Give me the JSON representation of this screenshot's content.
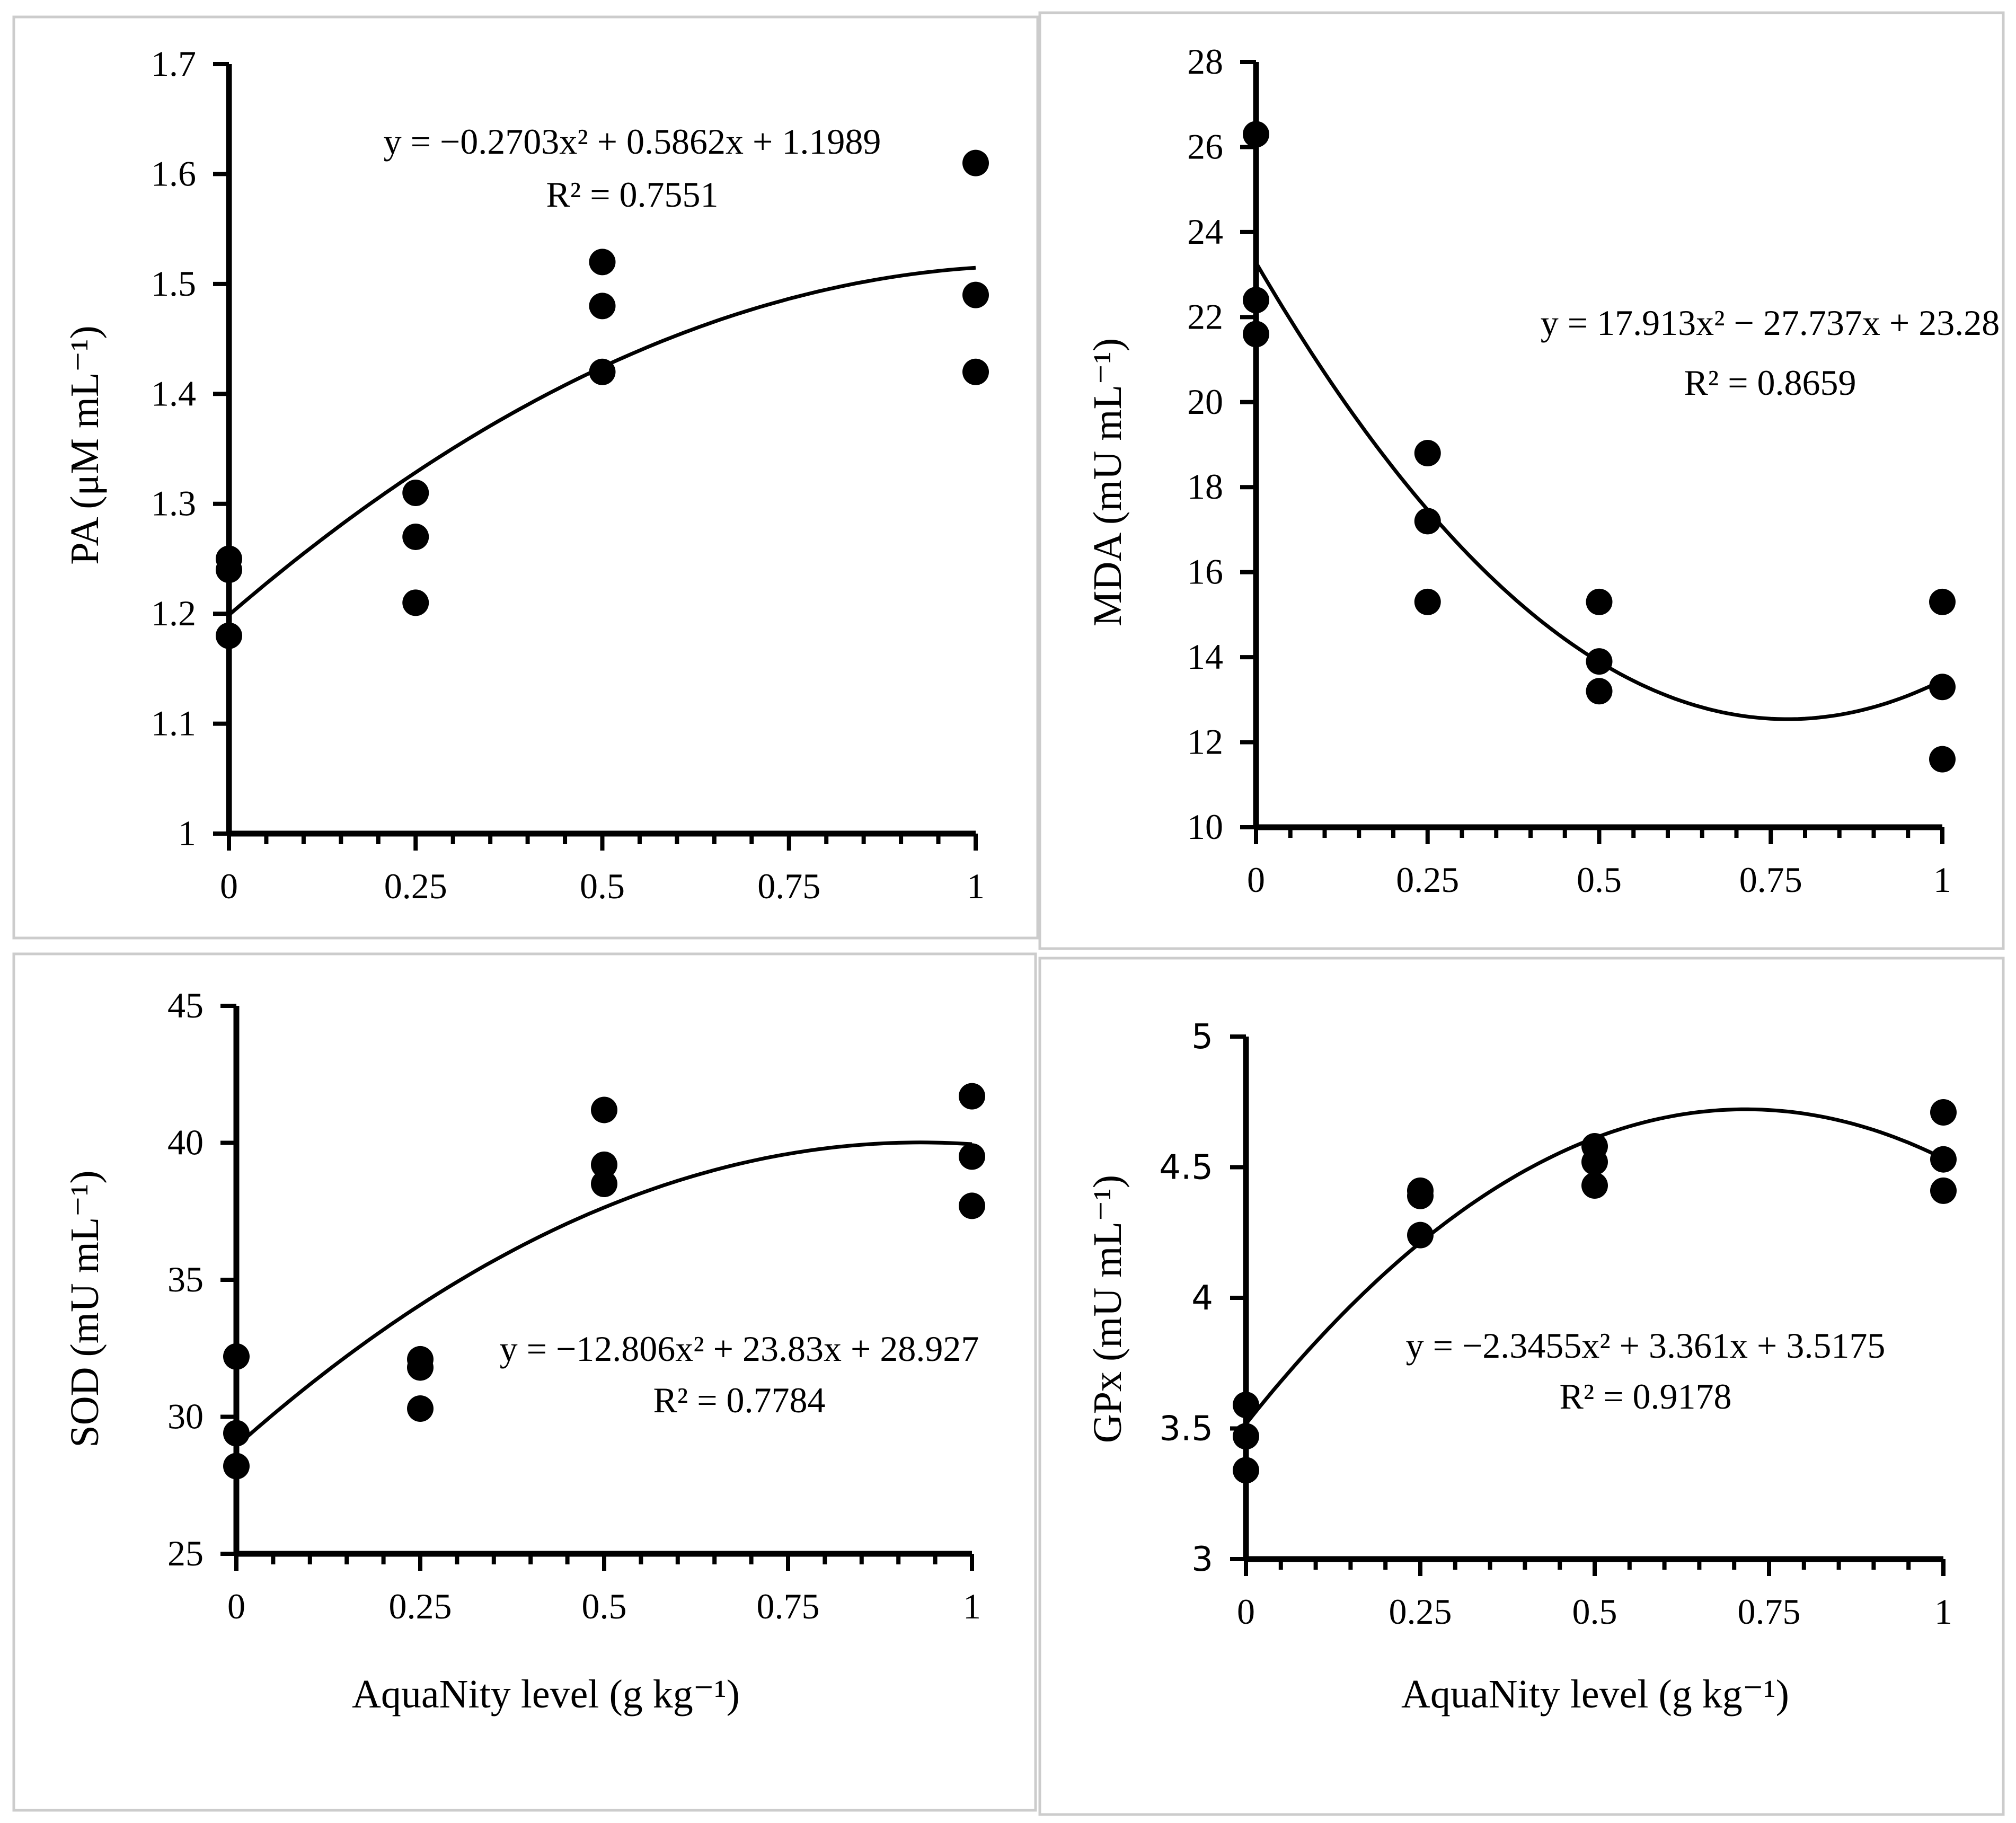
{
  "figure_xlabel": "AquaNity level (g kg⁻¹)",
  "colors": {
    "marker": "#000000",
    "curve": "#000000",
    "axis": "#000000",
    "panel_border": "#cccccc"
  },
  "chart_data": [
    {
      "id": "pa",
      "type": "scatter",
      "ylabel": "PA (μM mL⁻¹)",
      "xlim": [
        0,
        1
      ],
      "ylim": [
        1,
        1.7
      ],
      "xticks": [
        0,
        0.25,
        0.5,
        0.75,
        1
      ],
      "xtick_labels": [
        "0",
        "0.25",
        "0.5",
        "0.75",
        "1"
      ],
      "yticks": [
        1,
        1.1,
        1.2,
        1.3,
        1.4,
        1.5,
        1.6,
        1.7
      ],
      "ytick_labels": [
        "1",
        "1.1",
        "1.2",
        "1.3",
        "1.4",
        "1.5",
        "1.6",
        "1.7"
      ],
      "points": [
        {
          "x": 0,
          "y": 1.25
        },
        {
          "x": 0,
          "y": 1.24
        },
        {
          "x": 0,
          "y": 1.18
        },
        {
          "x": 0.25,
          "y": 1.31
        },
        {
          "x": 0.25,
          "y": 1.27
        },
        {
          "x": 0.25,
          "y": 1.21
        },
        {
          "x": 0.5,
          "y": 1.52
        },
        {
          "x": 0.5,
          "y": 1.48
        },
        {
          "x": 0.5,
          "y": 1.42
        },
        {
          "x": 1,
          "y": 1.61
        },
        {
          "x": 1,
          "y": 1.49
        },
        {
          "x": 1,
          "y": 1.42
        }
      ],
      "trendline": {
        "type": "polynomial",
        "coefficients": [
          -0.2703,
          0.5862,
          1.1989
        ]
      },
      "equation": "y = −0.2703x² + 0.5862x + 1.1989",
      "r2": "R² = 0.7551"
    },
    {
      "id": "mda",
      "type": "scatter",
      "ylabel": "MDA (mU mL⁻¹)",
      "xlim": [
        0,
        1
      ],
      "ylim": [
        10,
        28
      ],
      "xticks": [
        0,
        0.25,
        0.5,
        0.75,
        1
      ],
      "xtick_labels": [
        "0",
        "0.25",
        "0.5",
        "0.75",
        "1"
      ],
      "yticks": [
        10,
        12,
        14,
        16,
        18,
        20,
        22,
        24,
        26,
        28
      ],
      "ytick_labels": [
        "10",
        "12",
        "14",
        "16",
        "18",
        "20",
        "22",
        "24",
        "26",
        "28"
      ],
      "points": [
        {
          "x": 0,
          "y": 26.3
        },
        {
          "x": 0,
          "y": 22.4
        },
        {
          "x": 0,
          "y": 21.6
        },
        {
          "x": 0.25,
          "y": 18.8
        },
        {
          "x": 0.25,
          "y": 17.2
        },
        {
          "x": 0.25,
          "y": 15.3
        },
        {
          "x": 0.5,
          "y": 15.3
        },
        {
          "x": 0.5,
          "y": 13.9
        },
        {
          "x": 0.5,
          "y": 13.2
        },
        {
          "x": 1,
          "y": 15.3
        },
        {
          "x": 1,
          "y": 13.3
        },
        {
          "x": 1,
          "y": 11.6
        }
      ],
      "trendline": {
        "type": "polynomial",
        "coefficients": [
          17.913,
          -27.737,
          23.28
        ]
      },
      "equation": "y = 17.913x² − 27.737x + 23.28",
      "r2": "R² = 0.8659"
    },
    {
      "id": "sod",
      "type": "scatter",
      "ylabel": "SOD (mU mL⁻¹)",
      "xlim": [
        0,
        1
      ],
      "ylim": [
        25,
        45
      ],
      "xticks": [
        0,
        0.25,
        0.5,
        0.75,
        1
      ],
      "xtick_labels": [
        "0",
        "0.25",
        "0.5",
        "0.75",
        "1"
      ],
      "yticks": [
        25,
        30,
        35,
        40,
        45
      ],
      "ytick_labels": [
        "25",
        "30",
        "35",
        "40",
        "45"
      ],
      "points": [
        {
          "x": 0,
          "y": 32.2
        },
        {
          "x": 0,
          "y": 29.4
        },
        {
          "x": 0,
          "y": 28.2
        },
        {
          "x": 0.25,
          "y": 32.1
        },
        {
          "x": 0.25,
          "y": 31.8
        },
        {
          "x": 0.25,
          "y": 30.3
        },
        {
          "x": 0.5,
          "y": 41.2
        },
        {
          "x": 0.5,
          "y": 39.2
        },
        {
          "x": 0.5,
          "y": 38.5
        },
        {
          "x": 1,
          "y": 41.7
        },
        {
          "x": 1,
          "y": 39.5
        },
        {
          "x": 1,
          "y": 37.7
        }
      ],
      "trendline": {
        "type": "polynomial",
        "coefficients": [
          -12.806,
          23.83,
          28.927
        ]
      },
      "equation": "y = −12.806x² + 23.83x + 28.927",
      "r2": "R² = 0.7784"
    },
    {
      "id": "gpx",
      "type": "scatter",
      "ylabel": "GPx (mU mL⁻¹)",
      "xlim": [
        0,
        1
      ],
      "ylim": [
        3,
        5
      ],
      "xticks": [
        0,
        0.25,
        0.5,
        0.75,
        1
      ],
      "xtick_labels": [
        "0",
        "0.25",
        "0.5",
        "0.75",
        "1"
      ],
      "yticks": [
        3,
        3.5,
        4,
        4.5,
        5
      ],
      "ytick_labels": [
        "3",
        "3.5",
        "4",
        "4.5",
        "5"
      ],
      "points": [
        {
          "x": 0,
          "y": 3.59
        },
        {
          "x": 0,
          "y": 3.47
        },
        {
          "x": 0,
          "y": 3.34
        },
        {
          "x": 0.25,
          "y": 4.41
        },
        {
          "x": 0.25,
          "y": 4.39
        },
        {
          "x": 0.25,
          "y": 4.24
        },
        {
          "x": 0.5,
          "y": 4.58
        },
        {
          "x": 0.5,
          "y": 4.52
        },
        {
          "x": 0.5,
          "y": 4.43
        },
        {
          "x": 1,
          "y": 4.71
        },
        {
          "x": 1,
          "y": 4.53
        },
        {
          "x": 1,
          "y": 4.41
        }
      ],
      "trendline": {
        "type": "polynomial",
        "coefficients": [
          -2.3455,
          3.361,
          3.5175
        ]
      },
      "equation": "y = −2.3455x² + 3.361x + 3.5175",
      "r2": "R² = 0.9178"
    }
  ]
}
